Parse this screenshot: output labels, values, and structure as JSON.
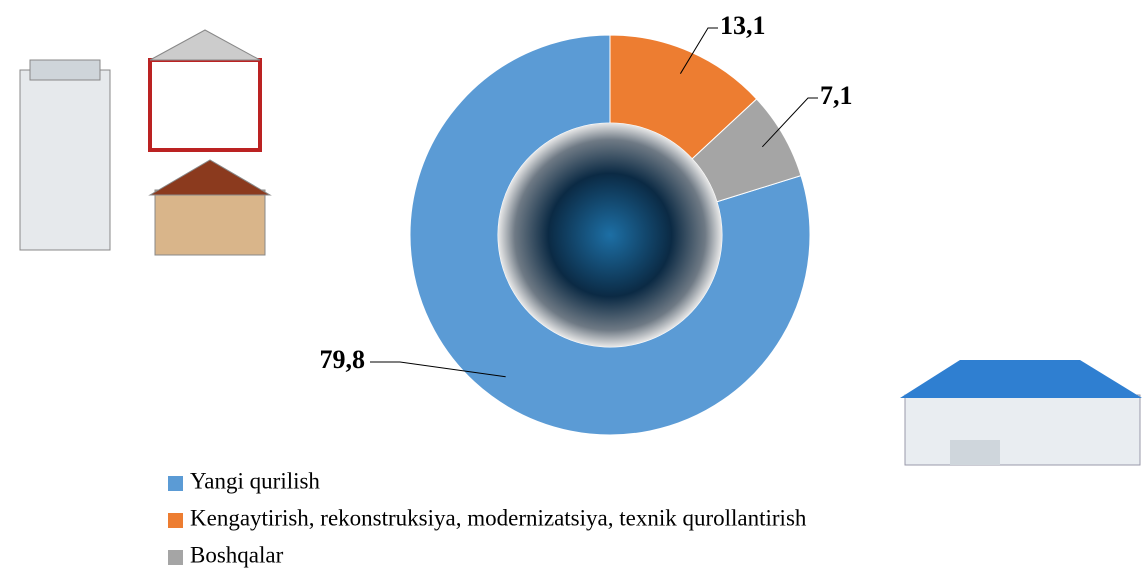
{
  "chart_data": {
    "type": "donut",
    "categories": [
      "Yangi qurilish",
      "Kengaytirish, rekonstruksiya, modernizatsiya, texnik qurollantirish",
      "Boshqalar"
    ],
    "values": [
      79.8,
      13.1,
      7.1
    ],
    "value_labels": [
      "79,8",
      "13,1",
      "7,1"
    ],
    "colors": [
      "#5b9bd5",
      "#ed7d31",
      "#a5a5a5"
    ]
  }
}
